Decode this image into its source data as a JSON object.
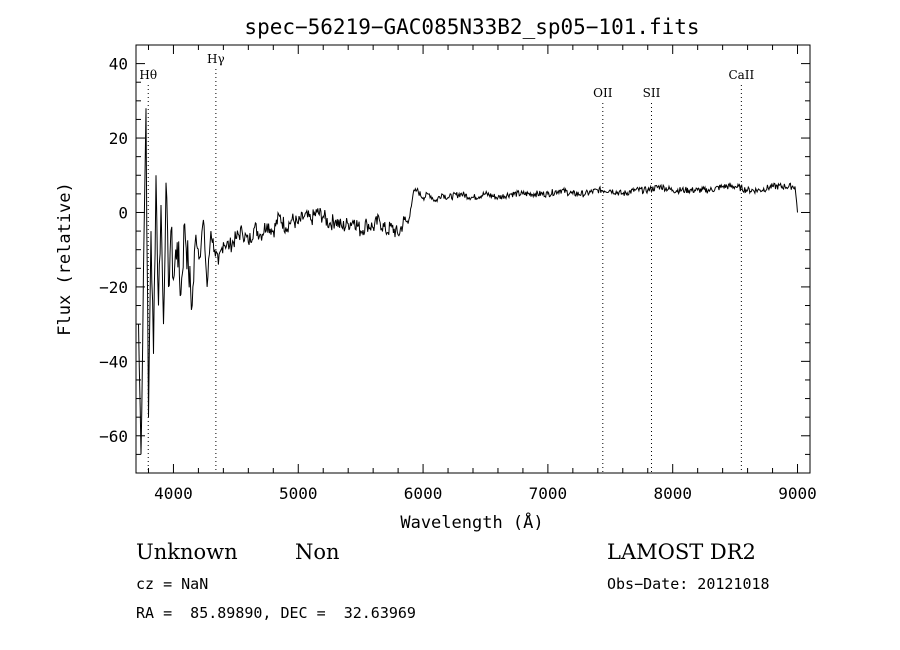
{
  "chart_data": {
    "type": "line",
    "title": "spec−56219−GAC085N33B2_sp05−101.fits",
    "xlabel": "Wavelength (Å)",
    "ylabel": "Flux (relative)",
    "xlim": [
      3700,
      9100
    ],
    "ylim": [
      -70,
      45
    ],
    "x_ticks": [
      4000,
      5000,
      6000,
      7000,
      8000,
      9000
    ],
    "y_ticks": [
      -60,
      -40,
      -20,
      0,
      20,
      40
    ],
    "y_tick_labels": [
      "−60",
      "−40",
      "−20",
      "0",
      "20",
      "40"
    ],
    "grid": false,
    "series": [
      {
        "x": [
          3720,
          3740,
          3760,
          3780,
          3800,
          3820,
          3840,
          3860,
          3880,
          3900,
          3920,
          3940,
          3960,
          3980,
          4000,
          4030,
          4060,
          4090,
          4120,
          4150,
          4180,
          4210,
          4240,
          4270,
          4300,
          4330,
          4360,
          4400,
          4450,
          4500,
          4550,
          4600,
          4650,
          4700,
          4750,
          4800,
          4850,
          4900,
          4950,
          5000,
          5050,
          5100,
          5150,
          5200,
          5250,
          5300,
          5350,
          5400,
          5450,
          5500,
          5550,
          5600,
          5650,
          5700,
          5750,
          5800,
          5850,
          5880,
          5900,
          5920,
          5950,
          6000,
          6050,
          6100,
          6150,
          6200,
          6300,
          6400,
          6500,
          6600,
          6700,
          6800,
          6900,
          7000,
          7100,
          7200,
          7300,
          7400,
          7500,
          7600,
          7700,
          7800,
          7900,
          8000,
          8100,
          8200,
          8300,
          8400,
          8500,
          8600,
          8700,
          8800,
          8900,
          8980,
          9000
        ],
        "y": [
          -30,
          -65,
          -15,
          28,
          -55,
          -5,
          -38,
          10,
          -25,
          2,
          -30,
          8,
          -20,
          -5,
          -18,
          -8,
          -22,
          -3,
          -15,
          -25,
          -6,
          -12,
          -2,
          -20,
          -5,
          -10,
          -14,
          -8,
          -9,
          -7,
          -5,
          -8,
          -4,
          -6,
          -3,
          -5,
          -1,
          -4,
          -2,
          -3,
          -1,
          -2,
          0,
          -1,
          -3,
          -2,
          -4,
          -3,
          -2,
          -5,
          -3,
          -4,
          -2,
          -5,
          -4,
          -6,
          -2,
          -3,
          1,
          5,
          6,
          4,
          5,
          3,
          5,
          4,
          5,
          4,
          5,
          4,
          5,
          5,
          5,
          5,
          6,
          5,
          5,
          6,
          6,
          5,
          6,
          6,
          7,
          6,
          6,
          6,
          6,
          7,
          7,
          6,
          6,
          7,
          7,
          7,
          0
        ]
      }
    ],
    "lines": [
      {
        "label": "Hθ",
        "x": 3798
      },
      {
        "label": "Hγ",
        "x": 4340
      },
      {
        "label": "OII",
        "x": 7440
      },
      {
        "label": "SII",
        "x": 7830
      },
      {
        "label": "CaII",
        "x": 8550
      }
    ]
  },
  "info": {
    "class": "Unknown",
    "subclass": "Non",
    "survey": "LAMOST DR2",
    "cz": "cz = NaN",
    "obs_date": "Obs−Date: 20121018",
    "coords": "RA =  85.89890, DEC =  32.63969"
  }
}
